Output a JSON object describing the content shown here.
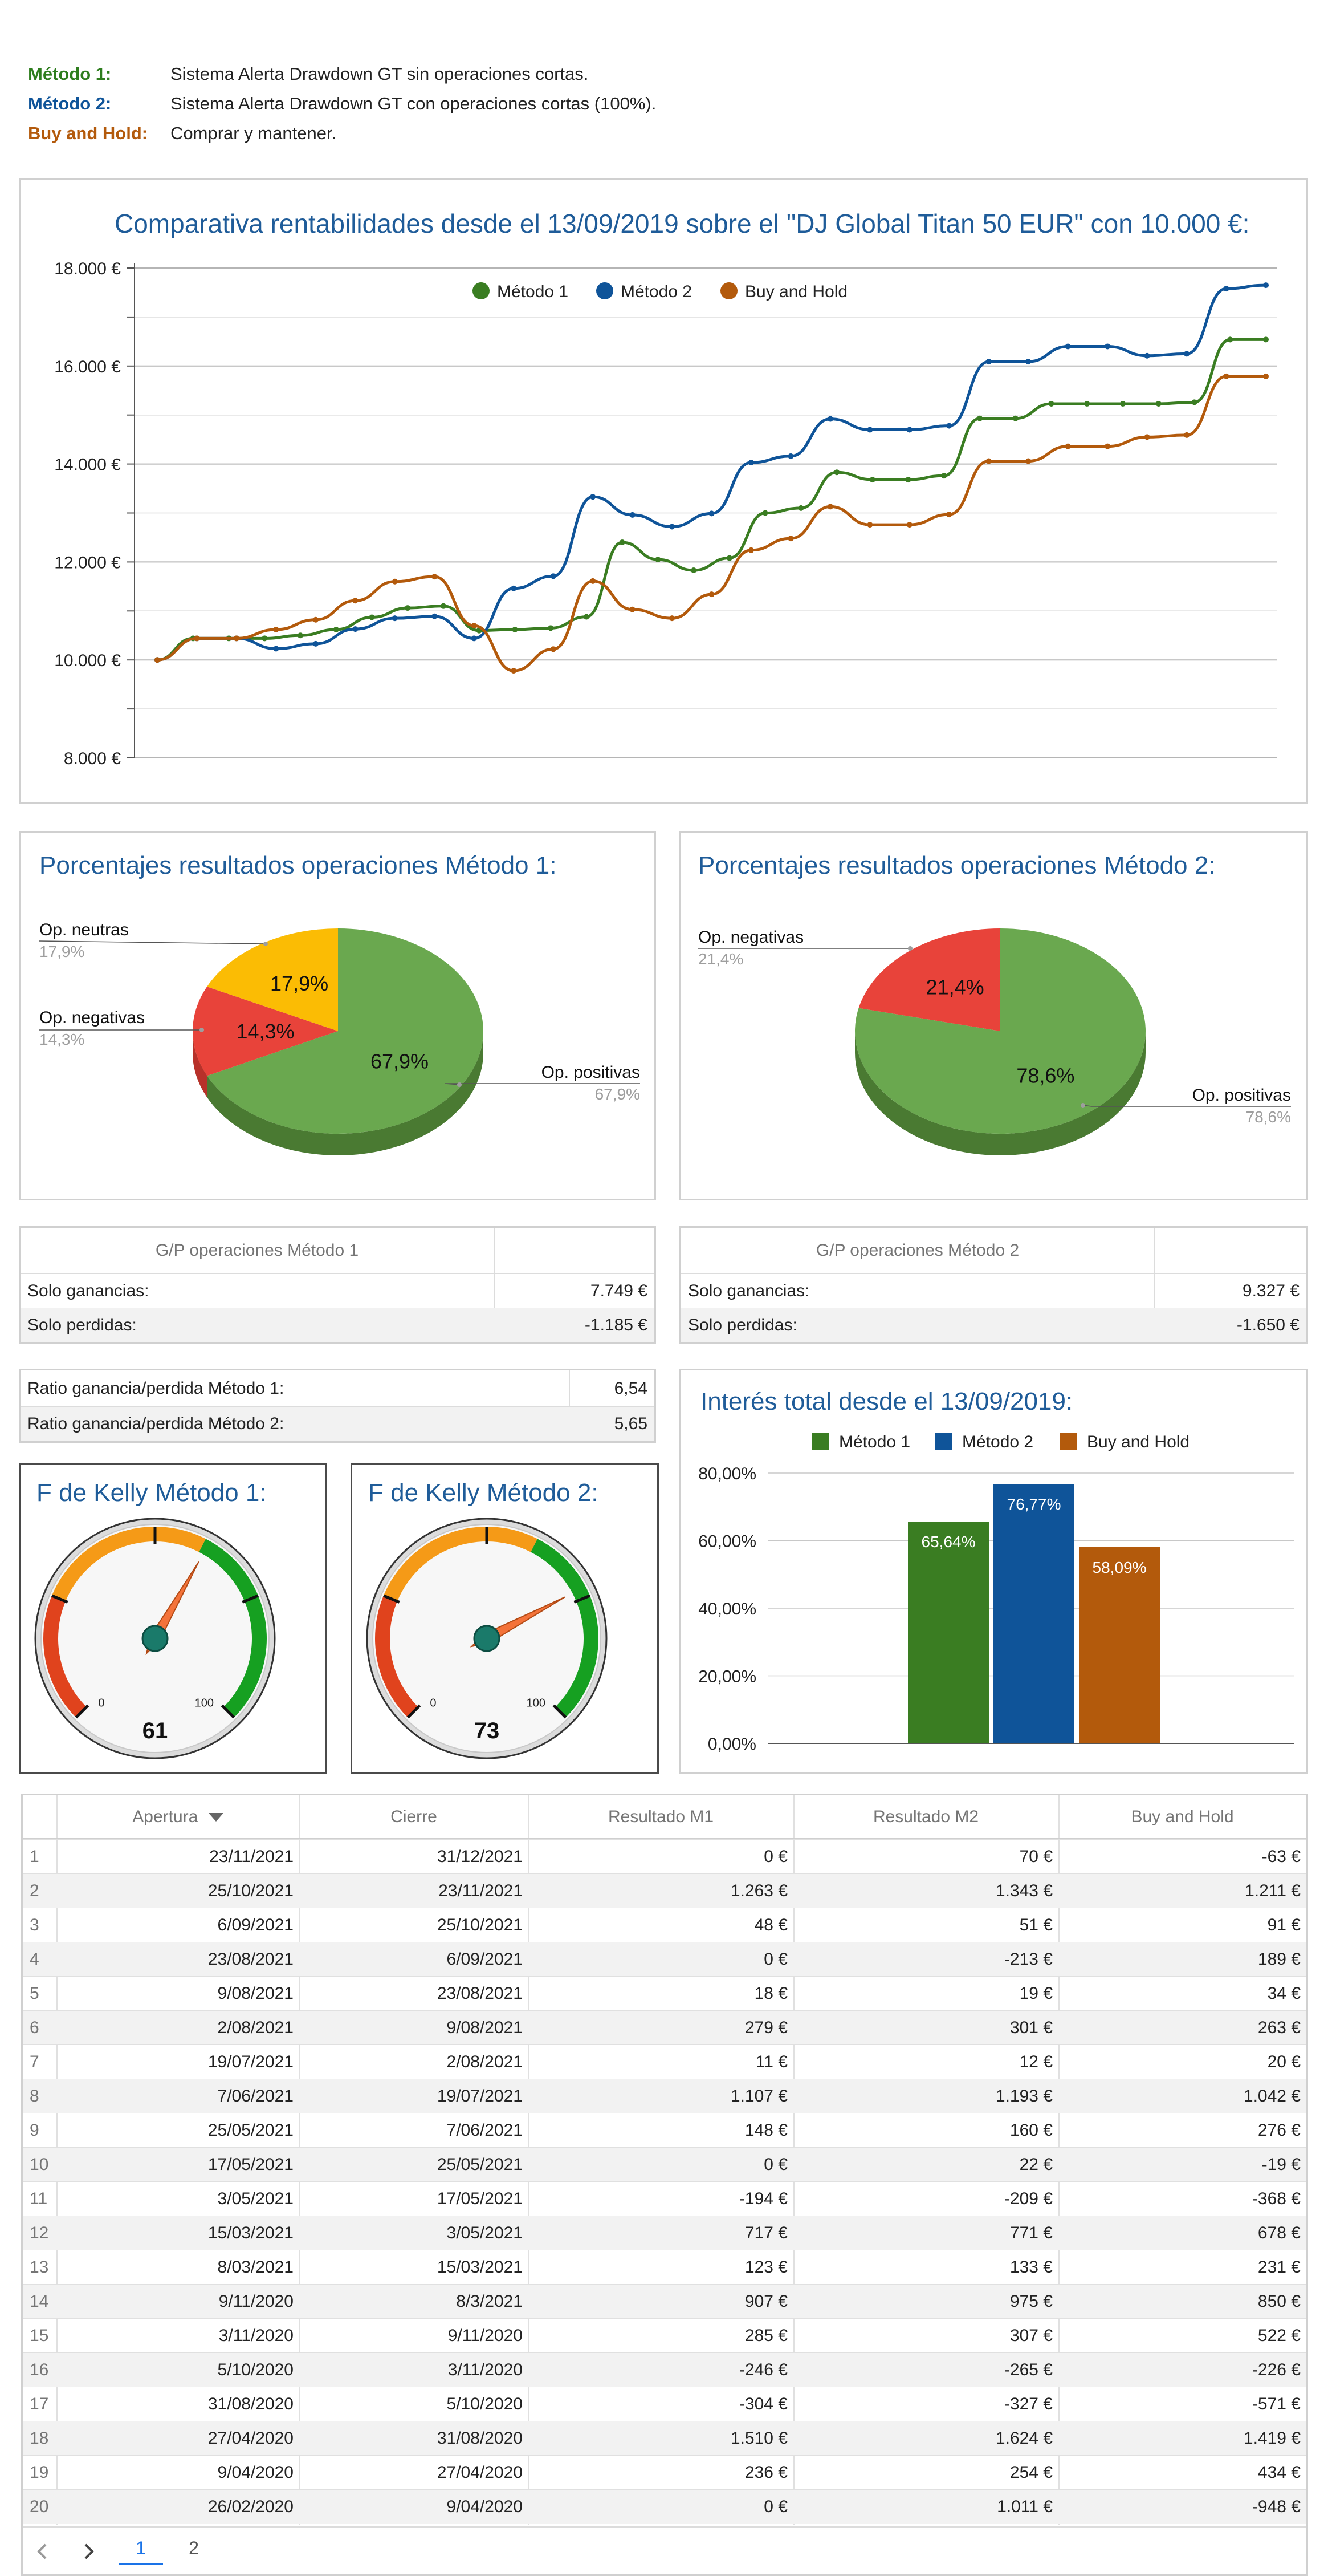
{
  "legend": [
    {
      "key": "Método 1:",
      "desc": "Sistema Alerta Drawdown GT sin operaciones cortas.",
      "color": "#2e7d1e"
    },
    {
      "key": "Método 2:",
      "desc": "Sistema Alerta Drawdown GT con operaciones cortas (100%).",
      "color": "#0f5499"
    },
    {
      "key": "Buy and Hold:",
      "desc": "Comprar y mantener.",
      "color": "#b35a0c"
    }
  ],
  "line_chart_title": "Comparativa rentabilidades desde el 13/09/2019 sobre el \"DJ Global Titan 50 EUR\" con 10.000 €:",
  "pie1_title": "Porcentajes resultados operaciones Método 1:",
  "pie2_title": "Porcentajes resultados operaciones Método 2:",
  "gp1": {
    "header": "G/P operaciones Método 1",
    "rows": [
      {
        "label": "Solo ganancias:",
        "value": "7.749 €"
      },
      {
        "label": "Solo perdidas:",
        "value": "-1.185 €"
      }
    ]
  },
  "gp2": {
    "header": "G/P operaciones Método 2",
    "rows": [
      {
        "label": "Solo ganancias:",
        "value": "9.327 €"
      },
      {
        "label": "Solo perdidas:",
        "value": "-1.650 €"
      }
    ]
  },
  "ratio": [
    {
      "label": "Ratio ganancia/perdida Método 1:",
      "value": "6,54"
    },
    {
      "label": "Ratio ganancia/perdida Método 2:",
      "value": "5,65"
    }
  ],
  "kelly1": {
    "title": "F de Kelly Método 1:",
    "value": 61,
    "min_label": "0",
    "max_label": "100",
    "display": "61"
  },
  "kelly2": {
    "title": "F de Kelly Método 2:",
    "value": 73,
    "min_label": "0",
    "max_label": "100",
    "display": "73"
  },
  "bar_title": "Interés total desde el 13/09/2019:",
  "table": {
    "headers": [
      "Apertura",
      "Cierre",
      "Resultado M1",
      "Resultado M2",
      "Buy and Hold"
    ],
    "rows": [
      [
        "1",
        "23/11/2021",
        "31/12/2021",
        "0 €",
        "70 €",
        "-63 €"
      ],
      [
        "2",
        "25/10/2021",
        "23/11/2021",
        "1.263 €",
        "1.343 €",
        "1.211 €"
      ],
      [
        "3",
        "6/09/2021",
        "25/10/2021",
        "48 €",
        "51 €",
        "91 €"
      ],
      [
        "4",
        "23/08/2021",
        "6/09/2021",
        "0 €",
        "-213 €",
        "189 €"
      ],
      [
        "5",
        "9/08/2021",
        "23/08/2021",
        "18 €",
        "19 €",
        "34 €"
      ],
      [
        "6",
        "2/08/2021",
        "9/08/2021",
        "279 €",
        "301 €",
        "263 €"
      ],
      [
        "7",
        "19/07/2021",
        "2/08/2021",
        "11 €",
        "12 €",
        "20 €"
      ],
      [
        "8",
        "7/06/2021",
        "19/07/2021",
        "1.107 €",
        "1.193 €",
        "1.042 €"
      ],
      [
        "9",
        "25/05/2021",
        "7/06/2021",
        "148 €",
        "160 €",
        "276 €"
      ],
      [
        "10",
        "17/05/2021",
        "25/05/2021",
        "0 €",
        "22 €",
        "-19 €"
      ],
      [
        "11",
        "3/05/2021",
        "17/05/2021",
        "-194 €",
        "-209 €",
        "-368 €"
      ],
      [
        "12",
        "15/03/2021",
        "3/05/2021",
        "717 €",
        "771 €",
        "678 €"
      ],
      [
        "13",
        "8/03/2021",
        "15/03/2021",
        "123 €",
        "133 €",
        "231 €"
      ],
      [
        "14",
        "9/11/2020",
        "8/3/2021",
        "907 €",
        "975 €",
        "850 €"
      ],
      [
        "15",
        "3/11/2020",
        "9/11/2020",
        "285 €",
        "307 €",
        "522 €"
      ],
      [
        "16",
        "5/10/2020",
        "3/11/2020",
        "-246 €",
        "-265 €",
        "-226 €"
      ],
      [
        "17",
        "31/08/2020",
        "5/10/2020",
        "-304 €",
        "-327 €",
        "-571 €"
      ],
      [
        "18",
        "27/04/2020",
        "31/08/2020",
        "1.510 €",
        "1.624 €",
        "1.419 €"
      ],
      [
        "19",
        "9/04/2020",
        "27/04/2020",
        "236 €",
        "254 €",
        "434 €"
      ],
      [
        "20",
        "26/02/2020",
        "9/04/2020",
        "0 €",
        "1.011 €",
        "-948 €"
      ]
    ],
    "pagination": {
      "pages": [
        "1",
        "2"
      ],
      "current": "1"
    }
  },
  "chart_data": [
    {
      "type": "line",
      "title": "Comparativa rentabilidades desde el 13/09/2019 sobre el \"DJ Global Titan 50 EUR\" con 10.000 €:",
      "y_ticks": [
        "8.000 €",
        "10.000 €",
        "12.000 €",
        "14.000 €",
        "16.000 €",
        "18.000 €"
      ],
      "ylim": [
        8000,
        18000
      ],
      "legend_position": "top",
      "series": [
        {
          "name": "Método 1",
          "color": "#3a7d22",
          "values": [
            10000,
            10440,
            10440,
            10440,
            10500,
            10620,
            10870,
            11060,
            11100,
            10600,
            10620,
            10650,
            10880,
            12400,
            12050,
            11830,
            12080,
            13000,
            13100,
            13830,
            13680,
            13680,
            13760,
            14930,
            14930,
            15230,
            15230,
            15230,
            15230,
            15260,
            16540,
            16540
          ]
        },
        {
          "name": "Método 2",
          "color": "#0f5499",
          "values": [
            10000,
            10440,
            10440,
            10230,
            10330,
            10630,
            10850,
            10890,
            10440,
            11460,
            11710,
            13330,
            12960,
            12720,
            12990,
            14030,
            14160,
            14920,
            14700,
            14700,
            14780,
            16090,
            16090,
            16400,
            16400,
            16210,
            16250,
            17580,
            17650
          ]
        },
        {
          "name": "Buy and Hold",
          "color": "#b35a0c",
          "values": [
            10000,
            10440,
            10440,
            10620,
            10820,
            11210,
            11600,
            11700,
            10700,
            9780,
            10220,
            11610,
            11030,
            10850,
            11340,
            12240,
            12480,
            13130,
            12760,
            12760,
            12970,
            14060,
            14060,
            14360,
            14360,
            14550,
            14590,
            15790,
            15790
          ]
        }
      ]
    },
    {
      "type": "pie",
      "title": "Porcentajes resultados operaciones Método 1:",
      "slices": [
        {
          "label": "Op. positivas",
          "value": 67.9,
          "display": "67,9%",
          "color": "#6aa84f"
        },
        {
          "label": "Op. negativas",
          "value": 14.3,
          "display": "14,3%",
          "color": "#e8433a"
        },
        {
          "label": "Op. neutras",
          "value": 17.9,
          "display": "17,9%",
          "color": "#fbbc04"
        }
      ]
    },
    {
      "type": "pie",
      "title": "Porcentajes resultados operaciones Método 2:",
      "slices": [
        {
          "label": "Op. positivas",
          "value": 78.6,
          "display": "78,6%",
          "color": "#6aa84f"
        },
        {
          "label": "Op. negativas",
          "value": 21.4,
          "display": "21,4%",
          "color": "#e8433a"
        }
      ]
    },
    {
      "type": "bar",
      "title": "Interés total desde el 13/09/2019:",
      "y_ticks": [
        "0,00%",
        "20,00%",
        "40,00%",
        "60,00%",
        "80,00%"
      ],
      "ylim": [
        0,
        80
      ],
      "legend_position": "top",
      "series": [
        {
          "name": "Método 1",
          "value": 65.64,
          "display": "65,64%",
          "color": "#3a7d22"
        },
        {
          "name": "Método 2",
          "value": 76.77,
          "display": "76,77%",
          "color": "#0f5499"
        },
        {
          "name": "Buy and Hold",
          "value": 58.09,
          "display": "58,09%",
          "color": "#b35a0c"
        }
      ]
    }
  ]
}
